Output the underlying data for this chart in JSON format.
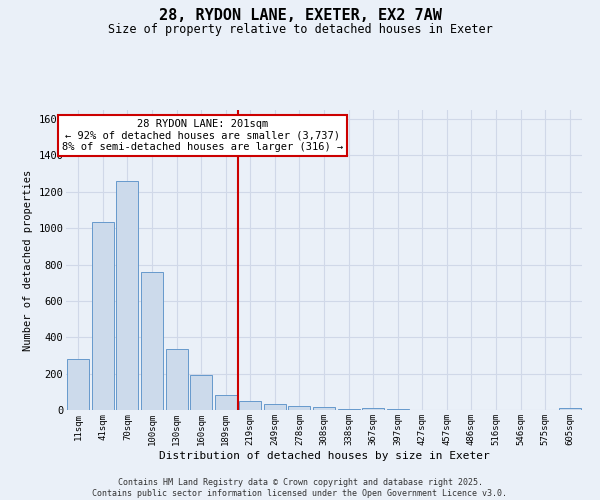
{
  "title": "28, RYDON LANE, EXETER, EX2 7AW",
  "subtitle": "Size of property relative to detached houses in Exeter",
  "xlabel": "Distribution of detached houses by size in Exeter",
  "ylabel": "Number of detached properties",
  "categories": [
    "11sqm",
    "41sqm",
    "70sqm",
    "100sqm",
    "130sqm",
    "160sqm",
    "189sqm",
    "219sqm",
    "249sqm",
    "278sqm",
    "308sqm",
    "338sqm",
    "367sqm",
    "397sqm",
    "427sqm",
    "457sqm",
    "486sqm",
    "516sqm",
    "546sqm",
    "575sqm",
    "605sqm"
  ],
  "values": [
    280,
    1035,
    1260,
    760,
    335,
    190,
    80,
    50,
    35,
    20,
    15,
    5,
    12,
    5,
    2,
    2,
    2,
    0,
    0,
    0,
    10
  ],
  "bar_color": "#ccdaeb",
  "bar_edgecolor": "#6699cc",
  "vline_pos": 6.5,
  "vline_color": "#cc0000",
  "annotation_text": "28 RYDON LANE: 201sqm\n← 92% of detached houses are smaller (3,737)\n8% of semi-detached houses are larger (316) →",
  "annotation_box_color": "#ffffff",
  "annotation_box_edgecolor": "#cc0000",
  "background_color": "#eaf0f8",
  "grid_color": "#d0d8e8",
  "ylim": [
    0,
    1650
  ],
  "yticks": [
    0,
    200,
    400,
    600,
    800,
    1000,
    1200,
    1400,
    1600
  ],
  "footer_line1": "Contains HM Land Registry data © Crown copyright and database right 2025.",
  "footer_line2": "Contains public sector information licensed under the Open Government Licence v3.0."
}
